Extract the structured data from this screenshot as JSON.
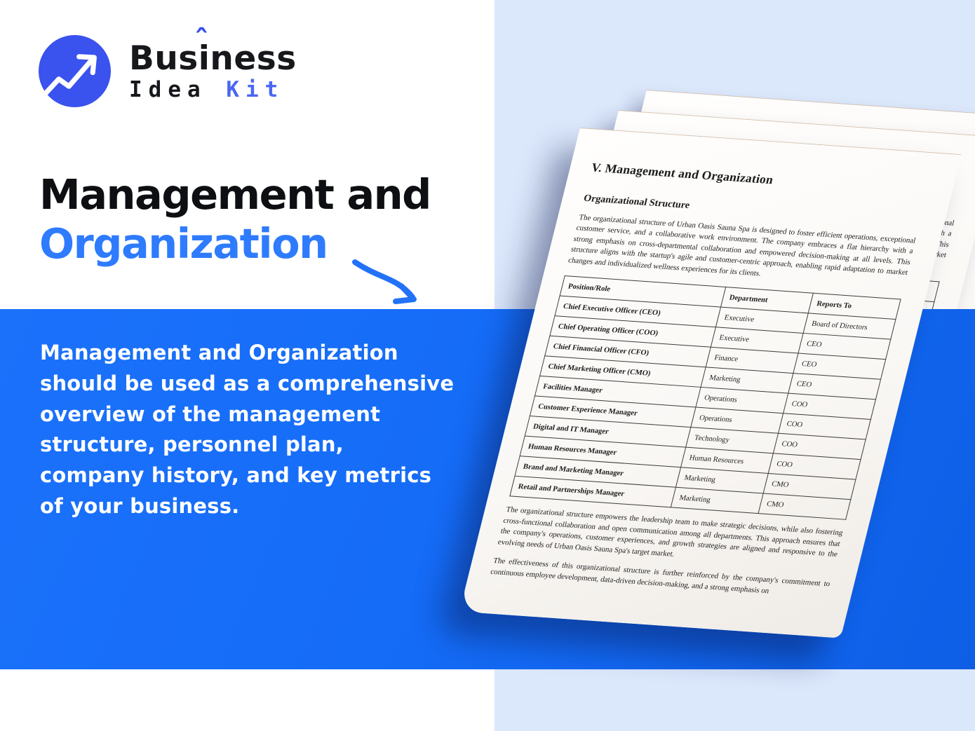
{
  "colors": {
    "accent_blue": "#2e7bfe",
    "panel_blue": "#156cf7",
    "logo_blue": "#3a52ee",
    "light_blue_bg": "#dbe7fb",
    "page_white": "#faf8f5"
  },
  "logo": {
    "word_top_part1": "Bus",
    "word_top_part2": "iness",
    "accent_mark": "ˆ",
    "word_bottom_part1": "Idea",
    "word_bottom_part2": "Kit"
  },
  "hero": {
    "title_dark": "Management and",
    "title_accent": "Organization"
  },
  "description": {
    "text": "Management and Organization\nshould be used as a comprehensive\noverview of the management\nstructure, personnel plan,\ncompany history, and key metrics\nof your business."
  },
  "document": {
    "title": "V. Management and Organization",
    "section_heading": "Organizational Structure",
    "paragraph1": "The organizational structure of Urban Oasis Sauna Spa is designed to foster efficient operations, exceptional customer service, and a collaborative work environment. The company embraces a flat hierarchy with a strong emphasis on cross-departmental collaboration and empowered decision-making at all levels. This structure aligns with the startup's agile and customer-centric approach, enabling rapid adaptation to market changes and individualized wellness experiences for its clients.",
    "table": {
      "headers": [
        "Position/Role",
        "Department",
        "Reports To"
      ],
      "rows": [
        [
          "Chief Executive Officer (CEO)",
          "Executive",
          "Board of Directors"
        ],
        [
          "Chief Operating Officer (COO)",
          "Executive",
          "CEO"
        ],
        [
          "Chief Financial Officer (CFO)",
          "Finance",
          "CEO"
        ],
        [
          "Chief Marketing Officer (CMO)",
          "Marketing",
          "CEO"
        ],
        [
          "Facilities Manager",
          "Operations",
          "COO"
        ],
        [
          "Customer Experience Manager",
          "Operations",
          "COO"
        ],
        [
          "Digital and IT Manager",
          "Technology",
          "COO"
        ],
        [
          "Human Resources Manager",
          "Human Resources",
          "COO"
        ],
        [
          "Brand and Marketing Manager",
          "Marketing",
          "CMO"
        ],
        [
          "Retail and Partnerships Manager",
          "Marketing",
          "CMO"
        ]
      ]
    },
    "paragraph2": "The organizational structure empowers the leadership team to make strategic decisions, while also fostering cross-functional collaboration and open communication among all departments. This approach ensures that the company's operations, customer experiences, and growth strategies are aligned and responsive to the evolving needs of Urban Oasis Sauna Spa's target market.",
    "paragraph3": "The effectiveness of this organizational structure is further reinforced by the company's commitment to continuous employee development, data-driven decision-making, and a strong emphasis on"
  }
}
